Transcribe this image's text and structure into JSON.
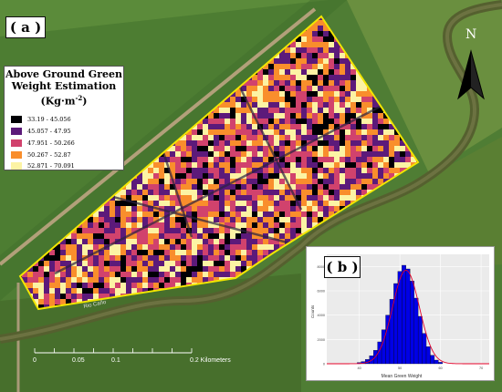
{
  "panel_a": {
    "label": "( a )"
  },
  "panel_b": {
    "label": "( b )"
  },
  "legend": {
    "title_line1": "Above Ground Green",
    "title_line2": "Weight Estimation",
    "title_unit": "(Kg·m",
    "title_unit_sup": "-2",
    "title_unit_close": ")",
    "classes": [
      {
        "label": "33.19 - 45.056",
        "color": "#000004"
      },
      {
        "label": "45.057 - 47.95",
        "color": "#5c1a7a"
      },
      {
        "label": "47.951 - 50.266",
        "color": "#d1426d"
      },
      {
        "label": "50.267 - 52.87",
        "color": "#f98e2c"
      },
      {
        "label": "52.871 - 70.091",
        "color": "#fcf3a4"
      }
    ]
  },
  "north_arrow": {
    "letter": "N"
  },
  "scale_bar": {
    "ticks": [
      "0",
      "0.05",
      "0.1",
      "0.2 Kilometers"
    ],
    "tick_values": [
      0,
      0.05,
      0.1,
      0.2
    ]
  },
  "river_label": "Rio Caño",
  "colors": {
    "field_outline": "#f2e600",
    "histogram_bar": "#0000e6",
    "fit_curve": "#e6002a"
  },
  "chart_data": {
    "type": "bar",
    "title": "",
    "xlabel": "Mean Green Weight",
    "ylabel": "Counts",
    "xlim": [
      32,
      72
    ],
    "ylim": [
      0,
      9000
    ],
    "x_ticks": [
      "40",
      "50",
      "60",
      "70"
    ],
    "y_ticks": [
      "0",
      "2000",
      "4000",
      "6000",
      "8000"
    ],
    "bin_width": 1,
    "bins": [
      40,
      41,
      42,
      43,
      44,
      45,
      46,
      47,
      48,
      49,
      50,
      51,
      52,
      53,
      54,
      55,
      56,
      57,
      58,
      59,
      60
    ],
    "values": [
      100,
      180,
      350,
      650,
      1100,
      1800,
      2800,
      4000,
      5300,
      6600,
      7600,
      8100,
      7800,
      6800,
      5400,
      3900,
      2500,
      1400,
      700,
      300,
      120
    ],
    "fit_curve": {
      "name": "",
      "mean": 51.5,
      "sd": 3.3,
      "peak": 7700
    }
  }
}
